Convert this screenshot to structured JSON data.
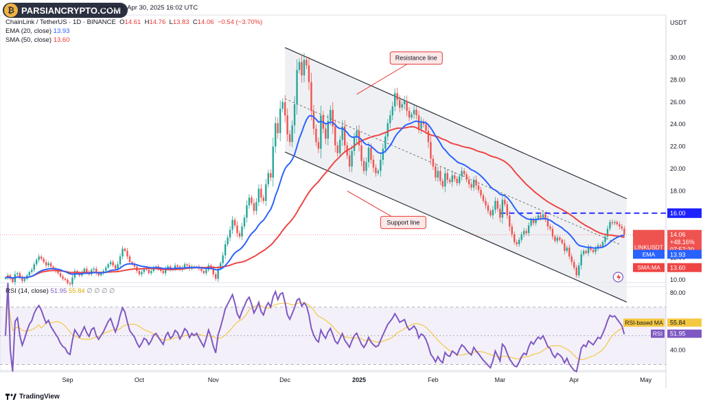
{
  "watermark": "PARSIANCRYPTO.COM",
  "header": {
    "line1_prefix": "ChainLink / TetherUS · 1D · BINANCE",
    "published": "iew.com, Apr 30, 2025 16:02 UTC",
    "open_label": "O",
    "open": "14.61",
    "high_label": "H",
    "high": "14.76",
    "low_label": "L",
    "low": "13.83",
    "close_label": "C",
    "close": "14.06",
    "change": "−0.54 (−3.70%)",
    "ema_label": "EMA (20, close)",
    "ema_value": "13.93",
    "sma_label": "SMA (50, close)",
    "sma_value": "13.60"
  },
  "rsi_header": {
    "label": "RSI (14, close)",
    "rsi": "51.95",
    "ma": "55.84",
    "extra": "∅ ∅ ∅ ∅"
  },
  "footer": {
    "brand": "TradingView"
  },
  "chart_data": {
    "type": "candlestick",
    "currency": "USDT",
    "price_axis": {
      "ticks": [
        10,
        12,
        14,
        16,
        18,
        20,
        22,
        24,
        26,
        28,
        30
      ],
      "range": [
        8.5,
        31.2
      ]
    },
    "rsi_axis": {
      "ticks": [
        40,
        60,
        80
      ],
      "range": [
        25,
        87
      ],
      "bands": [
        70,
        30
      ]
    },
    "x_ticks": [
      "Sep",
      "Oct",
      "Nov",
      "Dec",
      "2025",
      "Feb",
      "Mar",
      "Apr",
      "May"
    ],
    "x_tick_days": [
      26,
      56,
      87,
      117,
      148,
      179,
      207,
      238,
      268
    ],
    "last_day": 257,
    "candles_close": [
      10.2,
      10.4,
      10.1,
      9.8,
      10.5,
      10.6,
      10.2,
      9.9,
      10.1,
      10.4,
      10.7,
      10.9,
      11.4,
      11.8,
      12.1,
      11.9,
      11.6,
      11.3,
      11.5,
      11.2,
      11.0,
      10.8,
      10.6,
      10.3,
      10.1,
      10.0,
      9.7,
      9.6,
      10.2,
      10.8,
      10.6,
      10.4,
      10.7,
      11.0,
      10.7,
      10.5,
      10.9,
      11.0,
      10.6,
      10.4,
      10.6,
      10.8,
      11.1,
      11.4,
      11.6,
      11.3,
      11.0,
      11.4,
      12.1,
      12.8,
      12.6,
      12.1,
      11.6,
      11.4,
      11.2,
      10.8,
      10.5,
      10.7,
      11.0,
      10.9,
      10.6,
      10.8,
      11.1,
      11.2,
      11.0,
      10.8,
      10.6,
      11.0,
      11.2,
      10.9,
      11.0,
      11.3,
      11.2,
      10.9,
      11.1,
      11.4,
      11.3,
      11.0,
      11.2,
      11.1,
      11.2,
      11.0,
      10.8,
      10.6,
      10.9,
      11.3,
      11.0,
      10.5,
      10.1,
      11.0,
      11.5,
      12.2,
      13.2,
      13.8,
      14.5,
      15.4,
      14.9,
      14.2,
      13.9,
      14.8,
      15.6,
      16.7,
      17.4,
      16.9,
      16.2,
      17.0,
      18.2,
      17.4,
      17.1,
      18.6,
      19.6,
      19.2,
      22.0,
      24.1,
      23.2,
      25.4,
      26.0,
      24.8,
      23.1,
      22.4,
      23.9,
      25.8,
      28.9,
      29.6,
      28.4,
      29.8,
      29.3,
      27.8,
      25.2,
      23.6,
      22.4,
      21.8,
      24.8,
      23.6,
      22.7,
      24.3,
      25.3,
      23.8,
      22.1,
      21.4,
      22.6,
      23.8,
      22.1,
      21.2,
      20.2,
      21.6,
      22.8,
      23.4,
      22.1,
      20.7,
      19.8,
      20.6,
      21.9,
      20.8,
      20.1,
      19.6,
      19.8,
      20.8,
      21.8,
      22.9,
      24.1,
      24.8,
      25.6,
      26.8,
      26.2,
      25.5,
      25.8,
      26.1,
      25.2,
      24.6,
      24.9,
      25.3,
      24.8,
      23.6,
      24.2,
      24.0,
      23.4,
      22.4,
      20.9,
      20.2,
      19.2,
      19.8,
      18.9,
      18.4,
      19.6,
      19.0,
      18.8,
      19.4,
      19.1,
      18.7,
      19.3,
      19.8,
      19.5,
      19.0,
      18.6,
      18.3,
      19.0,
      18.5,
      18.1,
      17.6,
      17.1,
      16.7,
      16.2,
      15.8,
      16.3,
      17.1,
      16.4,
      15.6,
      17.2,
      16.8,
      15.8,
      14.8,
      14.1,
      13.4,
      13.2,
      13.6,
      14.1,
      14.4,
      14.2,
      14.9,
      15.4,
      15.1,
      15.5,
      15.8,
      15.6,
      15.9,
      15.4,
      14.8,
      14.6,
      13.9,
      13.5,
      13.8,
      13.6,
      13.3,
      12.6,
      12.9,
      12.1,
      11.6,
      11.1,
      10.4,
      11.3,
      12.3,
      12.6,
      12.4,
      12.9,
      12.7,
      12.5,
      12.8,
      13.1,
      13.0,
      13.4,
      13.9,
      14.6,
      15.2,
      15.1,
      15.2,
      15.0,
      14.8,
      14.61,
      14.06
    ],
    "ema20_last": 13.93,
    "sma50_last": 13.6,
    "annotations": [
      {
        "text": "Resistance line",
        "at_day": 161,
        "at_price": 29.9
      },
      {
        "text": "Support line",
        "at_day": 157,
        "at_price": 15.1
      }
    ],
    "channel": {
      "upper": [
        [
          117,
          30.9
        ],
        [
          260,
          17.3
        ]
      ],
      "lower": [
        [
          117,
          21.5
        ],
        [
          260,
          8.0
        ]
      ],
      "mid": [
        [
          117,
          26.3
        ],
        [
          257,
          13.2
        ]
      ]
    },
    "resistance_level": {
      "price": 16.0,
      "from_day": 207
    },
    "price_tags": {
      "symbol": "LINKUSDT",
      "last": "14.06",
      "pct": "+48.16%",
      "countdown": "07:57:20",
      "ema_tag": "EMA",
      "ema": "13.93",
      "sma_tag": "SMA:MA",
      "sma": "13.60",
      "level": "16.00"
    },
    "rsi_tags": {
      "ma_label": "RSI-based MA",
      "ma": "55.84",
      "rsi_label": "RSI",
      "rsi": "51.95"
    },
    "colors": {
      "up": "#26a69a",
      "down": "#ef5350",
      "ema": "#2962ff",
      "sma": "#ef4444",
      "rsi": "#7e57c2",
      "rsi_ma": "#f5c842",
      "channel": "#2a2e39",
      "level": "#1e22ff"
    }
  }
}
